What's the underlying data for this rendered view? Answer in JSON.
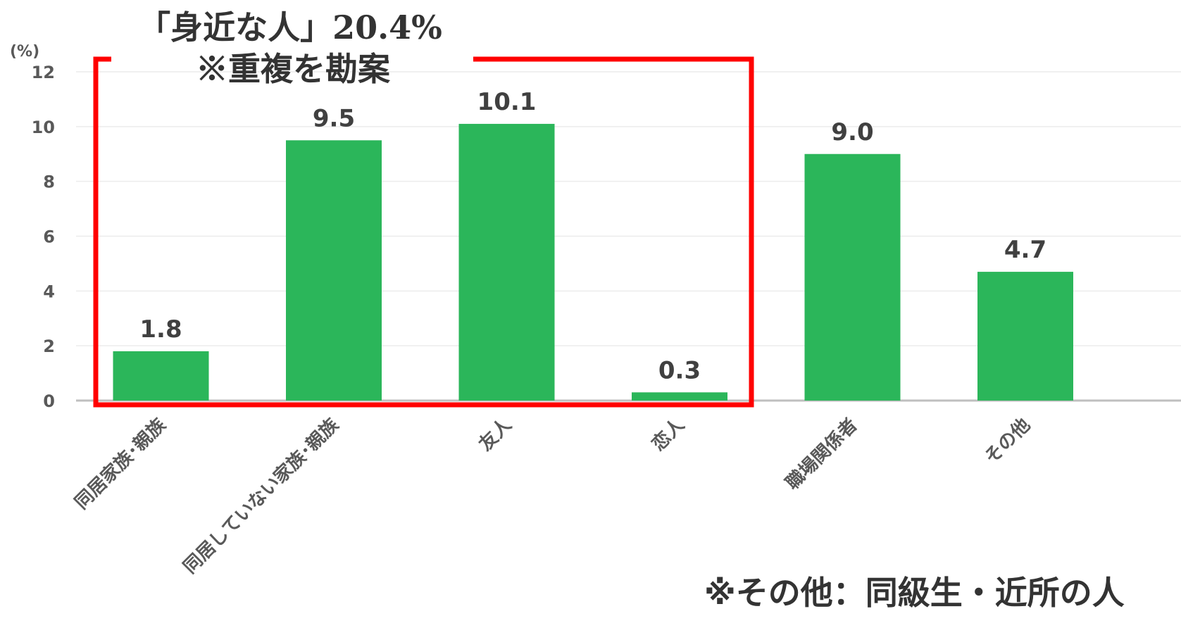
{
  "chart_data": {
    "type": "bar",
    "categories": [
      "同居家族･親族",
      "同居していない家族･親族",
      "友人",
      "恋人",
      "職場関係者",
      "その他"
    ],
    "values": [
      1.8,
      9.5,
      10.1,
      0.3,
      9.0,
      4.7
    ],
    "data_labels": [
      "1.8",
      "9.5",
      "10.1",
      "0.3",
      "9.0",
      "4.7"
    ],
    "ylim": [
      0,
      12
    ],
    "yticks": [
      0,
      2,
      4,
      6,
      8,
      10,
      12
    ],
    "y_unit": "(%)",
    "grid": true,
    "bar_color": "#2bb65a",
    "highlight": {
      "line1": "「身近な人」20.4%",
      "line2": "※重複を勘案",
      "covers_categories": [
        "同居家族･親族",
        "同居していない家族･親族",
        "友人",
        "恋人"
      ],
      "border_color": "#ff0000"
    },
    "footnote": "※その他：同級生・近所の人"
  }
}
